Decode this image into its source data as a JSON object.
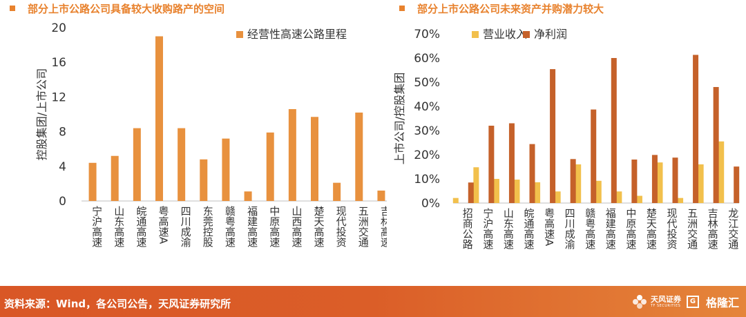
{
  "titles": {
    "left": "部分上市公路公司具备较大收购路产的空间",
    "right": "部分上市公路公司未来资产并购潜力较大"
  },
  "colors": {
    "accent": "#E8822E",
    "bar_left": "#E8913E",
    "bar_revenue": "#F2C04C",
    "bar_profit": "#C5612A",
    "footer": "#D95726"
  },
  "chart_data": [
    {
      "type": "bar",
      "title": "部分上市公路公司具备较大收购路产的空间",
      "ylabel": "控股集团/上市公司",
      "xlabel": "",
      "ylim": [
        0,
        20
      ],
      "yticks": [
        0,
        4,
        8,
        12,
        16,
        20
      ],
      "ytick_labels": [
        "0",
        "4",
        "8",
        "12",
        "16",
        "20"
      ],
      "legend_position": "top-right",
      "grid": false,
      "categories": [
        "宁沪高速",
        "山东高速",
        "皖通高速",
        "粤高速A",
        "四川成渝",
        "东莞控股",
        "赣粤高速",
        "福建高速",
        "中原高速",
        "山西高速",
        "楚天高速",
        "现代投资",
        "五洲交通",
        "吉林高速"
      ],
      "series": [
        {
          "name": "经营性高速公路里程",
          "values": [
            4.4,
            5.2,
            8.4,
            19.0,
            8.4,
            4.8,
            7.2,
            1.1,
            7.9,
            10.6,
            9.7,
            2.1,
            10.2,
            1.2
          ]
        }
      ]
    },
    {
      "type": "bar",
      "title": "部分上市公路公司未来资产并购潜力较大",
      "ylabel": "上市公司/控股集团",
      "xlabel": "",
      "ylim": [
        0,
        70
      ],
      "yticks": [
        0,
        10,
        20,
        30,
        40,
        50,
        60,
        70
      ],
      "ytick_labels": [
        "0%",
        "10%",
        "20%",
        "30%",
        "40%",
        "50%",
        "60%",
        "70%"
      ],
      "legend_position": "top-left",
      "grid": false,
      "categories": [
        "招商公路",
        "宁沪高速",
        "山东高速",
        "皖通高速",
        "粤高速A",
        "四川成渝",
        "赣粤高速",
        "福建高速",
        "中原高速",
        "楚天高速",
        "现代投资",
        "五洲交通",
        "吉林高速",
        "龙江交通"
      ],
      "series": [
        {
          "name": "营业收入",
          "values": [
            2.1,
            14.8,
            10.0,
            9.7,
            8.6,
            4.8,
            16.0,
            9.2,
            4.8,
            3.0,
            16.8,
            2.1,
            16.0,
            25.5
          ]
        },
        {
          "name": "净利润",
          "values": [
            8.5,
            32.0,
            33.0,
            24.4,
            55.4,
            18.2,
            38.7,
            60.0,
            18.0,
            19.9,
            18.8,
            61.3,
            48.0,
            15.1
          ]
        }
      ]
    }
  ],
  "footer": {
    "source": "资料来源：Wind，各公司公告，天风证券研究所",
    "brand_cn": "天风证券",
    "brand_en": "TF SECURITIES",
    "brand_g": "G",
    "brand_gelonghui": "格隆汇"
  }
}
